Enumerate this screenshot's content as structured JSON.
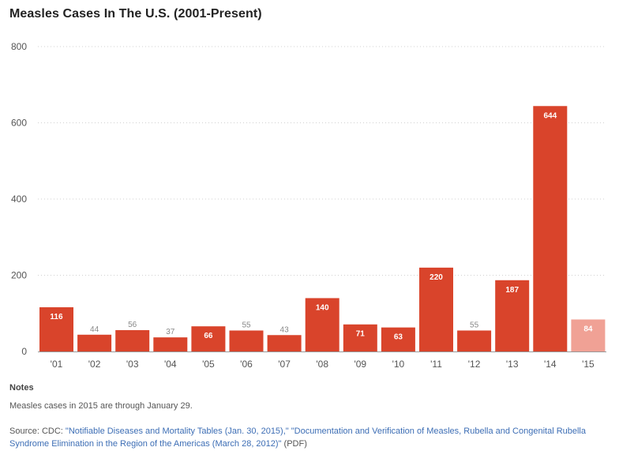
{
  "chart_data": {
    "type": "bar",
    "title": "Measles Cases In The U.S. (2001-Present)",
    "categories": [
      "'01",
      "'02",
      "'03",
      "'04",
      "'05",
      "'06",
      "'07",
      "'08",
      "'09",
      "'10",
      "'11",
      "'12",
      "'13",
      "'14",
      "'15"
    ],
    "values": [
      116,
      44,
      56,
      37,
      66,
      55,
      43,
      140,
      71,
      63,
      220,
      55,
      187,
      644,
      84
    ],
    "ylim": [
      0,
      800
    ],
    "yticks": [
      0,
      200,
      400,
      600,
      800
    ],
    "grid": true,
    "colors": {
      "bar": "#d9442b",
      "partial_bar": "#f0a195",
      "label_inside": "#ffffff",
      "label_outside": "#888888"
    },
    "partial_index": 14
  },
  "notes": {
    "heading": "Notes",
    "text": "Measles cases in 2015 are through January 29."
  },
  "source": {
    "prefix": "Source: CDC: ",
    "link1": "\"Notifiable Diseases and Mortality Tables (Jan. 30, 2015),\"",
    "link2": "\"Documentation and Verification of Measles, Rubella and Congenital Rubella Syndrome Elimination in the Region of the Americas (March 28, 2012)\"",
    "suffix": " (PDF)"
  }
}
